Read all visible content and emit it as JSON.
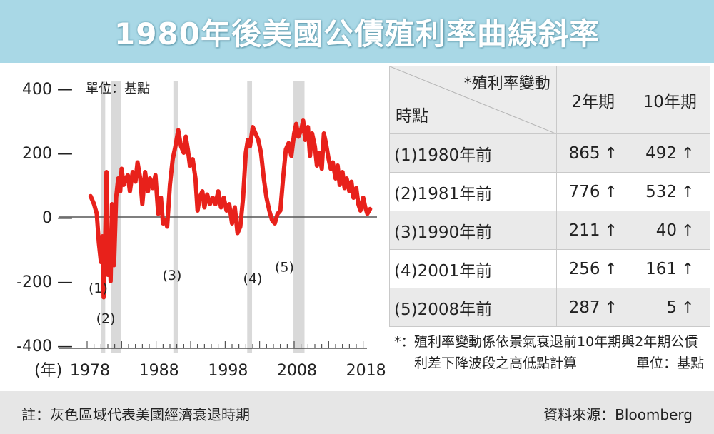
{
  "title": "1980年後美國公債殖利率曲線斜率",
  "chart_data": {
    "type": "line",
    "unit_label": "單位：基點",
    "xlabel_prefix": "(年)",
    "xlim": [
      1978,
      2020
    ],
    "ylim": [
      -400,
      400
    ],
    "y_ticks": [
      400,
      200,
      0,
      -200,
      -400
    ],
    "y_tick_labels": [
      "400 —",
      "200 —",
      "0 —",
      "-200 —",
      "-400 —"
    ],
    "x_ticks": [
      1978,
      1988,
      1998,
      2008,
      2018
    ],
    "recessions": [
      [
        1980.0,
        1980.5
      ],
      [
        1981.5,
        1982.9
      ],
      [
        1990.5,
        1991.2
      ],
      [
        2001.2,
        2001.9
      ],
      [
        2007.9,
        2009.5
      ]
    ],
    "annotations": [
      {
        "text": "(1)",
        "x": 1979.6,
        "y": -235
      },
      {
        "text": "(2)",
        "x": 1980.7,
        "y": -330
      },
      {
        "text": "(3)",
        "x": 1990.3,
        "y": -195
      },
      {
        "text": "(4)",
        "x": 2002.0,
        "y": -205
      },
      {
        "text": "(5)",
        "x": 2006.6,
        "y": -170
      }
    ],
    "series": [
      {
        "color": "#e8211b",
        "x": [
          1978.5,
          1979.0,
          1979.4,
          1979.7,
          1980.0,
          1980.2,
          1980.4,
          1980.6,
          1980.8,
          1981.0,
          1981.2,
          1981.4,
          1981.6,
          1981.9,
          1982.2,
          1982.5,
          1982.8,
          1983.0,
          1983.3,
          1983.6,
          1983.9,
          1984.2,
          1984.6,
          1985.0,
          1985.3,
          1985.7,
          1986.0,
          1986.4,
          1986.8,
          1987.1,
          1987.5,
          1987.9,
          1988.3,
          1988.7,
          1989.0,
          1989.3,
          1989.6,
          1990.0,
          1990.4,
          1990.8,
          1991.2,
          1991.6,
          1992.0,
          1992.3,
          1992.6,
          1992.9,
          1993.3,
          1993.7,
          1994.0,
          1994.3,
          1994.7,
          1995.0,
          1995.4,
          1995.8,
          1996.2,
          1996.6,
          1997.0,
          1997.4,
          1997.8,
          1998.2,
          1998.6,
          1999.0,
          1999.4,
          1999.8,
          2000.2,
          2000.6,
          2001.0,
          2001.3,
          2001.6,
          2002.0,
          2002.4,
          2002.8,
          2003.2,
          2003.6,
          2004.0,
          2004.4,
          2004.8,
          2005.2,
          2005.6,
          2006.0,
          2006.4,
          2006.8,
          2007.2,
          2007.6,
          2008.0,
          2008.3,
          2008.6,
          2009.0,
          2009.3,
          2009.6,
          2010.0,
          2010.3,
          2010.6,
          2011.0,
          2011.3,
          2011.6,
          2012.0,
          2012.3,
          2012.6,
          2013.0,
          2013.3,
          2013.6,
          2014.0,
          2014.3,
          2014.6,
          2015.0,
          2015.3,
          2015.6,
          2016.0,
          2016.3,
          2016.6,
          2017.0,
          2017.3,
          2017.6,
          2018.0,
          2018.3,
          2018.6,
          2019.0
        ],
        "values": [
          65,
          40,
          10,
          -80,
          -140,
          -60,
          -250,
          -90,
          140,
          -180,
          -60,
          -200,
          40,
          -150,
          60,
          120,
          80,
          150,
          100,
          120,
          130,
          80,
          140,
          110,
          170,
          120,
          40,
          140,
          80,
          120,
          90,
          130,
          10,
          60,
          -20,
          -10,
          -30,
          100,
          180,
          220,
          270,
          220,
          200,
          250,
          210,
          160,
          180,
          120,
          20,
          60,
          80,
          30,
          70,
          40,
          60,
          40,
          80,
          30,
          60,
          20,
          40,
          -20,
          30,
          -50,
          -30,
          60,
          200,
          240,
          220,
          280,
          260,
          240,
          200,
          120,
          60,
          20,
          -10,
          -20,
          10,
          20,
          120,
          210,
          230,
          190,
          260,
          290,
          250,
          270,
          300,
          240,
          280,
          190,
          260,
          220,
          160,
          200,
          150,
          260,
          230,
          180,
          150,
          170,
          120,
          160,
          100,
          140,
          90,
          120,
          80,
          110,
          60,
          90,
          40,
          20,
          60,
          30,
          10,
          25
        ]
      }
    ]
  },
  "table": {
    "header_change": "*殖利率變動",
    "header_time": "時點",
    "col_2yr": "2年期",
    "col_10yr": "10年期",
    "arrow": "↑",
    "rows": [
      {
        "time": "(1)1980年前",
        "two": "865",
        "ten": "492"
      },
      {
        "time": "(2)1981年前",
        "two": "776",
        "ten": "532"
      },
      {
        "time": "(3)1990年前",
        "two": "211",
        "ten": "40"
      },
      {
        "time": "(4)2001年前",
        "two": "256",
        "ten": "161"
      },
      {
        "time": "(5)2008年前",
        "two": "287",
        "ten": "5"
      }
    ]
  },
  "footnote": {
    "star": "*：",
    "text": "殖利率變動係依景氣衰退前10年期與2年期公債利差下降波段之高低點計算",
    "unit": "單位：基點"
  },
  "note": "註：灰色區域代表美國經濟衰退時期",
  "source": "資料來源：Bloomberg"
}
